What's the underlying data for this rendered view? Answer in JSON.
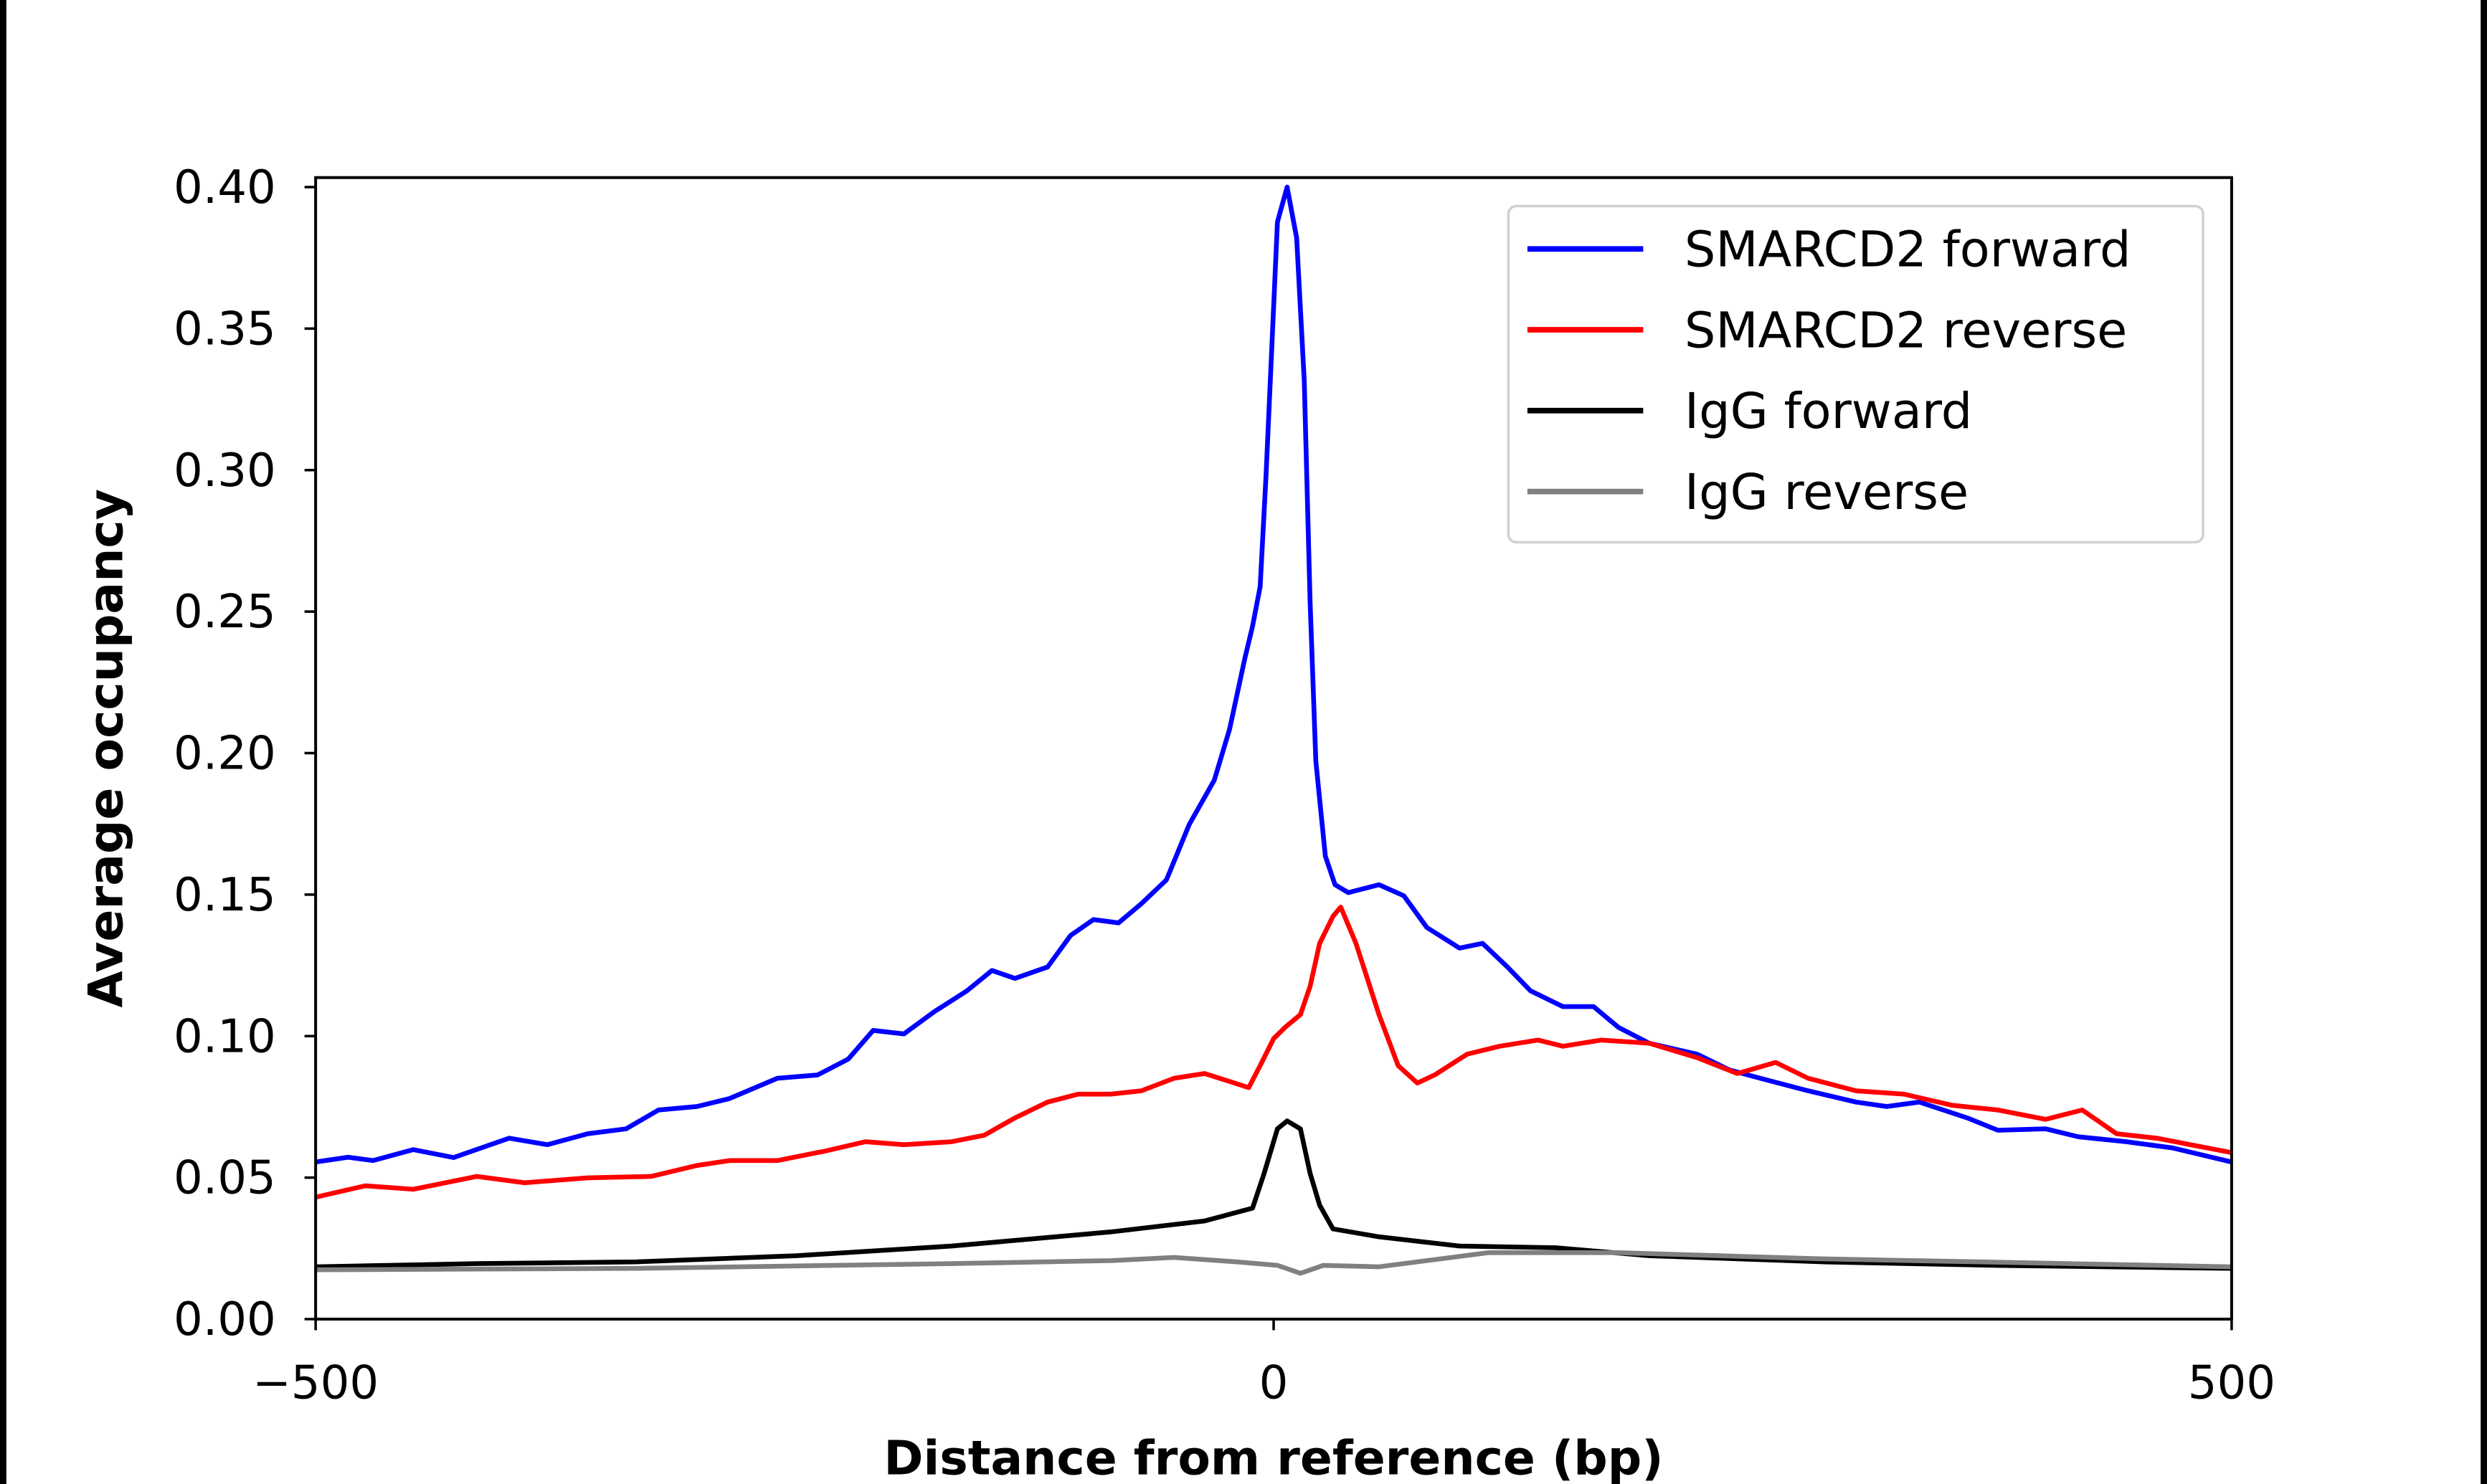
{
  "chart_data": {
    "type": "line",
    "title": "",
    "xlabel": "Distance from reference (bp)",
    "ylabel": "Average occupancy",
    "xlim": [
      -500,
      500
    ],
    "ylim": [
      0,
      0.4
    ],
    "xticks": [
      -500,
      0,
      500
    ],
    "xtick_labels": [
      "−500",
      "0",
      "500"
    ],
    "yticks": [
      0,
      0.05,
      0.1,
      0.15,
      0.2,
      0.25,
      0.3,
      0.35,
      0.4
    ],
    "ytick_labels": [
      "0.00",
      "0.05",
      "0.10",
      "0.15",
      "0.20",
      "0.25",
      "0.30",
      "0.35",
      "0.40"
    ],
    "grid": false,
    "legend_position": "top-right",
    "series": [
      {
        "name": "SMARCD2 forward",
        "color": "#0000ff",
        "x": [
          -500,
          -483,
          -470,
          -449,
          -428,
          -399,
          -379,
          -358,
          -338,
          -321,
          -301,
          -284,
          -259,
          -238,
          -222,
          -209,
          -193,
          -177,
          -160,
          -147,
          -135,
          -118,
          -106,
          -94,
          -81,
          -69,
          -56,
          -44,
          -31,
          -23,
          -15,
          -11,
          -7,
          -4,
          -1,
          2,
          7,
          12,
          16,
          19,
          22,
          27,
          32,
          39,
          55,
          68,
          80,
          97,
          109,
          122,
          134,
          151,
          167,
          180,
          196,
          221,
          238,
          254,
          279,
          304,
          320,
          337,
          362,
          378,
          403,
          420,
          445,
          469,
          500
        ],
        "y": [
          0.0555,
          0.0572,
          0.056,
          0.0599,
          0.0571,
          0.0639,
          0.0616,
          0.0655,
          0.0672,
          0.0739,
          0.0751,
          0.0779,
          0.0851,
          0.0863,
          0.0919,
          0.102,
          0.1008,
          0.1087,
          0.116,
          0.1232,
          0.1204,
          0.1244,
          0.1356,
          0.1412,
          0.14,
          0.1468,
          0.1552,
          0.1748,
          0.1905,
          0.2084,
          0.2336,
          0.2448,
          0.2588,
          0.298,
          0.3428,
          0.3877,
          0.4,
          0.3821,
          0.3316,
          0.2532,
          0.1972,
          0.1636,
          0.1535,
          0.1507,
          0.1535,
          0.1496,
          0.1384,
          0.1311,
          0.1328,
          0.1244,
          0.116,
          0.1104,
          0.1104,
          0.1031,
          0.0975,
          0.0936,
          0.088,
          0.0851,
          0.0807,
          0.0767,
          0.0751,
          0.0767,
          0.0711,
          0.0667,
          0.0672,
          0.0644,
          0.0627,
          0.0605,
          0.0555
        ]
      },
      {
        "name": "SMARCD2 reverse",
        "color": "#ff0000",
        "x": [
          -500,
          -474,
          -449,
          -416,
          -391,
          -358,
          -325,
          -301,
          -284,
          -259,
          -234,
          -213,
          -193,
          -168,
          -151,
          -135,
          -118,
          -102,
          -85,
          -69,
          -52,
          -36,
          -23,
          -13,
          -7,
          0,
          6,
          14,
          19,
          24,
          31,
          35,
          43,
          55,
          65,
          75,
          84,
          101,
          118,
          138,
          151,
          171,
          196,
          221,
          242,
          262,
          279,
          304,
          329,
          354,
          378,
          403,
          422,
          440,
          461,
          500
        ],
        "y": [
          0.0431,
          0.0471,
          0.0459,
          0.0504,
          0.0482,
          0.0499,
          0.0504,
          0.0543,
          0.056,
          0.056,
          0.0594,
          0.0627,
          0.0616,
          0.0627,
          0.065,
          0.0711,
          0.0767,
          0.0795,
          0.0795,
          0.0807,
          0.0851,
          0.0868,
          0.084,
          0.0818,
          0.0896,
          0.0991,
          0.1031,
          0.1076,
          0.1176,
          0.1328,
          0.1423,
          0.1456,
          0.1328,
          0.1076,
          0.0896,
          0.0834,
          0.0863,
          0.0936,
          0.0964,
          0.0986,
          0.0964,
          0.0986,
          0.0975,
          0.0924,
          0.0868,
          0.0907,
          0.0851,
          0.0807,
          0.0795,
          0.0756,
          0.0739,
          0.0706,
          0.0739,
          0.0655,
          0.0639,
          0.0588
        ]
      },
      {
        "name": "IgG forward",
        "color": "#000000",
        "x": [
          -500,
          -416,
          -333,
          -249,
          -168,
          -85,
          -36,
          -11,
          -5,
          2,
          7,
          14,
          19,
          24,
          31,
          55,
          97,
          147,
          196,
          287,
          378,
          500
        ],
        "y": [
          0.0185,
          0.0196,
          0.0202,
          0.0224,
          0.0258,
          0.0308,
          0.0347,
          0.0392,
          0.0515,
          0.0672,
          0.07,
          0.0672,
          0.0515,
          0.0403,
          0.0319,
          0.0291,
          0.0258,
          0.0252,
          0.0224,
          0.0202,
          0.019,
          0.0179
        ]
      },
      {
        "name": "IgG reverse",
        "color": "#808080",
        "x": [
          -500,
          -333,
          -168,
          -85,
          -52,
          -19,
          2,
          14,
          26,
          55,
          112,
          180,
          287,
          500
        ],
        "y": [
          0.0174,
          0.0179,
          0.0196,
          0.0207,
          0.0218,
          0.0202,
          0.019,
          0.0162,
          0.019,
          0.0185,
          0.0235,
          0.0235,
          0.0213,
          0.0185
        ]
      }
    ]
  }
}
